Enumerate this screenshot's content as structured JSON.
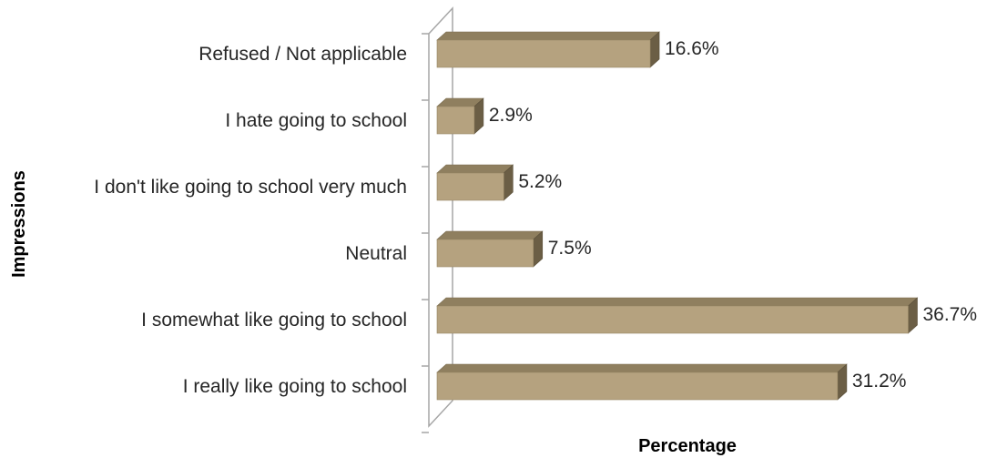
{
  "chart_data": {
    "type": "bar",
    "orientation": "horizontal",
    "style": "3d",
    "categories": [
      "Refused / Not applicable",
      "I hate going to school",
      "I don't like going to school very much",
      "Neutral",
      "I somewhat like going to school",
      "I really like going to school"
    ],
    "values": [
      16.6,
      2.9,
      5.2,
      7.5,
      36.7,
      31.2
    ],
    "value_labels": [
      "16.6%",
      "2.9%",
      "5.2%",
      "7.5%",
      "36.7%",
      "31.2%"
    ],
    "xlabel": "Percentage",
    "ylabel": "Impressions",
    "xlim": [
      0,
      37
    ],
    "grid": false,
    "legend": "none",
    "colors": {
      "bar_front": "#b5a27f",
      "bar_top": "#8f7f5f",
      "bar_side": "#6b5e45",
      "axis_wall": "#a6a6a6"
    }
  }
}
